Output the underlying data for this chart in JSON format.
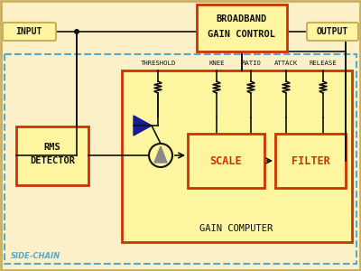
{
  "bg_color": "#fbf0c8",
  "border_color": "#c8b060",
  "red_color": "#cc3300",
  "blue_tri_color": "#1a1a99",
  "line_color": "#111111",
  "dashed_color": "#55aacc",
  "yellow_fill": "#fdf5a0",
  "text_dark": "#111111",
  "text_red": "#cc3300",
  "text_blue": "#55aacc",
  "input_label": "INPUT",
  "output_label": "OUTPUT",
  "broadband_line1": "BROADBAND",
  "broadband_line2": "GAIN CONTROL",
  "rms_line1": "RMS",
  "rms_line2": "DETECTOR",
  "scale_label": "SCALE",
  "filter_label": "FILTER",
  "gain_computer_label": "GAIN COMPUTER",
  "side_chain_label": "SIDE-CHAIN",
  "knob_labels": [
    "THRESHOLD",
    "KNEE",
    "RATIO",
    "ATTACK",
    "RELEASE"
  ],
  "knob_x": [
    175,
    240,
    278,
    317,
    358
  ],
  "figsize": [
    4.0,
    3.0
  ],
  "dpi": 100
}
